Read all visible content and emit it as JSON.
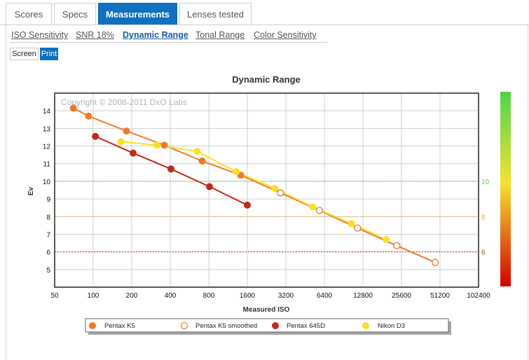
{
  "tabs": [
    {
      "label": "Scores",
      "active": false
    },
    {
      "label": "Specs",
      "active": false
    },
    {
      "label": "Measurements",
      "active": true
    },
    {
      "label": "Lenses tested",
      "active": false
    }
  ],
  "subtabs": [
    {
      "label": "ISO Sensitivity",
      "active": false
    },
    {
      "label": "SNR 18%",
      "active": false
    },
    {
      "label": "Dynamic Range",
      "active": true
    },
    {
      "label": "Tonal Range",
      "active": false
    },
    {
      "label": "Color Sensitivity",
      "active": false
    }
  ],
  "view_modes": {
    "screen_label": "Screen",
    "print_label": "Print",
    "selected": "Print"
  },
  "colors": {
    "accent": "#0f71c0"
  },
  "chart_data": {
    "type": "line",
    "title": "Dynamic Range",
    "watermark": "Copyright © 2008-2011 DxO Labs",
    "xlabel": "Measured ISO",
    "ylabel": "Ev",
    "x_scale": "log2",
    "x_ticks": [
      "50",
      "100",
      "200",
      "400",
      "800",
      "1600",
      "3200",
      "6400",
      "12800",
      "25600",
      "51200",
      "102400"
    ],
    "xlim": [
      50,
      102400
    ],
    "y_ticks": [
      "5",
      "6",
      "7",
      "8",
      "9",
      "10",
      "11",
      "12",
      "13",
      "14"
    ],
    "ylim": [
      4.0,
      15.0
    ],
    "grid": true,
    "reference_lines": [
      {
        "value": 10,
        "label": "10",
        "color": "#66cc33"
      },
      {
        "value": 8,
        "label": "8",
        "color": "#e8b23a"
      },
      {
        "value": 6,
        "label": "6",
        "color": "#c0392b"
      }
    ],
    "color_scale": {
      "top": "#4ed44a",
      "middle": "#f4e233",
      "bottom": "#d40000"
    },
    "legend": {
      "placement": "bottom"
    },
    "series": [
      {
        "name": "Pentax K5",
        "color": "#f07a28",
        "marker": "filled",
        "points": [
          [
            70,
            14.15
          ],
          [
            92,
            13.7
          ],
          [
            182,
            12.85
          ],
          [
            360,
            12.05
          ],
          [
            710,
            11.15
          ],
          [
            1420,
            10.35
          ]
        ]
      },
      {
        "name": "Pentax K5 smoothed",
        "color": "#f07a28",
        "marker": "hollow",
        "points": [
          [
            2900,
            9.35
          ],
          [
            5850,
            8.35
          ],
          [
            11600,
            7.35
          ],
          [
            23500,
            6.35
          ],
          [
            47000,
            5.4
          ]
        ]
      },
      {
        "name": "Pentax 645D",
        "color": "#c02a1a",
        "marker": "filled",
        "points": [
          [
            104,
            12.55
          ],
          [
            205,
            11.6
          ],
          [
            405,
            10.7
          ],
          [
            810,
            9.7
          ],
          [
            1600,
            8.65
          ]
        ]
      },
      {
        "name": "Nikon D3",
        "color": "#f8e02a",
        "marker": "filled",
        "points": [
          [
            165,
            12.25
          ],
          [
            315,
            12.05
          ],
          [
            650,
            11.7
          ],
          [
            1310,
            10.55
          ],
          [
            2620,
            9.6
          ],
          [
            5200,
            8.55
          ],
          [
            10400,
            7.6
          ],
          [
            19400,
            6.7
          ]
        ]
      }
    ],
    "line_segments": [
      {
        "color": "#f07a28",
        "points": [
          [
            70,
            14.15
          ],
          [
            92,
            13.7
          ],
          [
            182,
            12.85
          ],
          [
            360,
            12.05
          ],
          [
            710,
            11.15
          ],
          [
            1420,
            10.35
          ],
          [
            2900,
            9.35
          ],
          [
            5850,
            8.35
          ],
          [
            11600,
            7.35
          ],
          [
            23500,
            6.35
          ],
          [
            47000,
            5.4
          ]
        ]
      },
      {
        "color": "#c02a1a",
        "points": [
          [
            104,
            12.55
          ],
          [
            205,
            11.6
          ],
          [
            405,
            10.7
          ],
          [
            810,
            9.7
          ],
          [
            1600,
            8.65
          ]
        ]
      },
      {
        "color": "#f8e02a",
        "points": [
          [
            165,
            12.25
          ],
          [
            315,
            12.05
          ],
          [
            650,
            11.7
          ],
          [
            1310,
            10.55
          ],
          [
            2620,
            9.6
          ],
          [
            5200,
            8.55
          ],
          [
            10400,
            7.6
          ],
          [
            19400,
            6.7
          ]
        ]
      }
    ]
  }
}
